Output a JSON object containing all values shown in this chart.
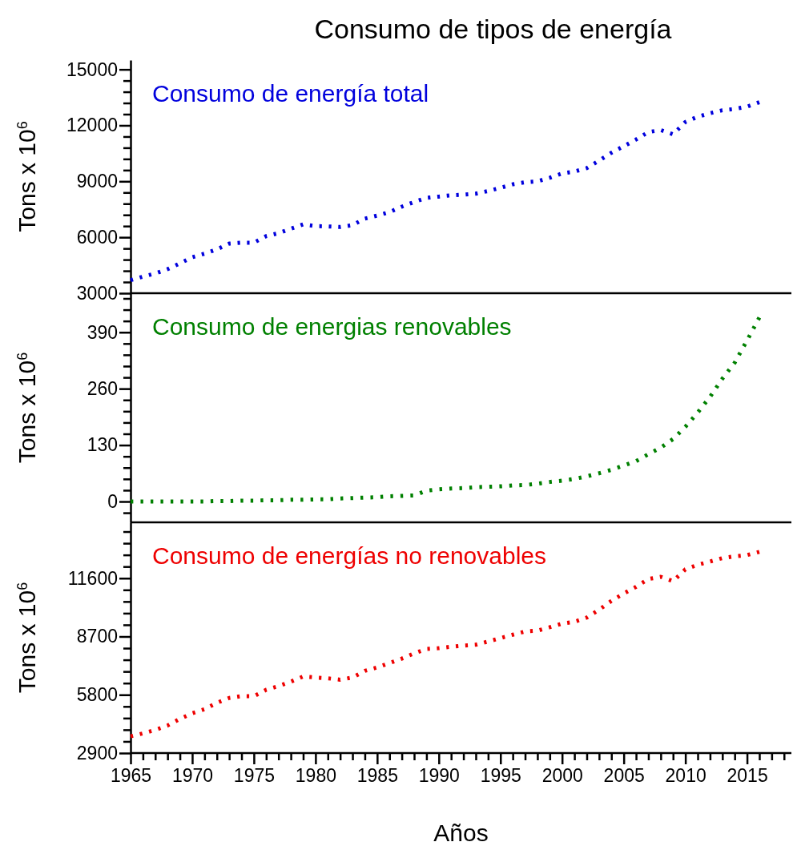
{
  "chart_data": [
    {
      "type": "line",
      "title": "Consumo de tipos de energía",
      "ylabel": "Tons x 10$^{6}$",
      "tick_labels": "y",
      "line_style": "dotted",
      "marker": "none",
      "x": [
        1965,
        1966,
        1967,
        1968,
        1969,
        1970,
        1971,
        1972,
        1973,
        1974,
        1975,
        1976,
        1977,
        1978,
        1979,
        1980,
        1981,
        1982,
        1983,
        1984,
        1985,
        1986,
        1987,
        1988,
        1989,
        1990,
        1991,
        1992,
        1993,
        1994,
        1995,
        1996,
        1997,
        1998,
        1999,
        2000,
        2001,
        2002,
        2003,
        2004,
        2005,
        2006,
        2007,
        2008,
        2009,
        2010,
        2011,
        2012,
        2013,
        2014,
        2015,
        2016
      ],
      "series": [
        {
          "name": "Consumo de energía total",
          "color": "#0000dd",
          "values": [
            3700,
            3890,
            4060,
            4290,
            4600,
            4930,
            5120,
            5350,
            5660,
            5710,
            5710,
            6060,
            6220,
            6460,
            6690,
            6600,
            6580,
            6550,
            6650,
            7000,
            7160,
            7350,
            7640,
            7890,
            8110,
            8180,
            8250,
            8290,
            8340,
            8480,
            8650,
            8840,
            8950,
            9000,
            9190,
            9420,
            9520,
            9710,
            10110,
            10530,
            10880,
            11240,
            11640,
            11750,
            11520,
            12180,
            12460,
            12650,
            12810,
            12880,
            13000,
            13240
          ]
        }
      ],
      "xlim": [
        1965,
        2018.6
      ],
      "ylim": [
        3000,
        15500
      ],
      "yticks": [
        3000,
        {
          "value": 3600,
          "label": null
        },
        {
          "value": 4200,
          "label": null
        },
        {
          "value": 4800,
          "label": null
        },
        {
          "value": 5400,
          "label": null
        },
        6000,
        {
          "value": 6600,
          "label": null
        },
        {
          "value": 7200,
          "label": null
        },
        {
          "value": 7800,
          "label": null
        },
        {
          "value": 8400,
          "label": null
        },
        9000,
        {
          "value": 9600,
          "label": null
        },
        {
          "value": 10200,
          "label": null
        },
        {
          "value": 10800,
          "label": null
        },
        {
          "value": 11400,
          "label": null
        },
        12000,
        {
          "value": 12600,
          "label": null
        },
        {
          "value": 13200,
          "label": null
        },
        {
          "value": 13800,
          "label": null
        },
        {
          "value": 14400,
          "label": null
        },
        15000
      ]
    },
    {
      "type": "line",
      "ylabel": "Tons x 10$^{6}$",
      "tick_labels": "y",
      "line_style": "dotted",
      "marker": "none",
      "x": [
        1965,
        1966,
        1967,
        1968,
        1969,
        1970,
        1971,
        1972,
        1973,
        1974,
        1975,
        1976,
        1977,
        1978,
        1979,
        1980,
        1981,
        1982,
        1983,
        1984,
        1985,
        1986,
        1987,
        1988,
        1989,
        1990,
        1991,
        1992,
        1993,
        1994,
        1995,
        1996,
        1997,
        1998,
        1999,
        2000,
        2001,
        2002,
        2003,
        2004,
        2005,
        2006,
        2007,
        2008,
        2009,
        2010,
        2011,
        2012,
        2013,
        2014,
        2015,
        2016
      ],
      "series": [
        {
          "name": "Consumo de energias renovables",
          "color": "#008000",
          "values": [
            0,
            0,
            0,
            0,
            0,
            0,
            0,
            1,
            1,
            2,
            2,
            3,
            3,
            4,
            4,
            5,
            5,
            7,
            8,
            9,
            10,
            12,
            13,
            14,
            25,
            28,
            30,
            31,
            33,
            34,
            35,
            37,
            38,
            41,
            45,
            48,
            52,
            58,
            65,
            73,
            83,
            93,
            109,
            124,
            144,
            172,
            205,
            241,
            283,
            320,
            371,
            424
          ]
        }
      ],
      "xlim": [
        1965,
        2018.6
      ],
      "ylim": [
        -48,
        480
      ],
      "yticks": [
        {
          "value": -26,
          "label": null
        },
        0,
        {
          "value": 26,
          "label": null
        },
        {
          "value": 52,
          "label": null
        },
        {
          "value": 78,
          "label": null
        },
        {
          "value": 104,
          "label": null
        },
        130,
        {
          "value": 156,
          "label": null
        },
        {
          "value": 182,
          "label": null
        },
        {
          "value": 208,
          "label": null
        },
        {
          "value": 234,
          "label": null
        },
        260,
        {
          "value": 286,
          "label": null
        },
        {
          "value": 312,
          "label": null
        },
        {
          "value": 338,
          "label": null
        },
        {
          "value": 364,
          "label": null
        },
        390,
        {
          "value": 416,
          "label": null
        },
        {
          "value": 442,
          "label": null
        },
        {
          "value": 468,
          "label": null
        }
      ]
    },
    {
      "type": "line",
      "ylabel": "Tons x 10$^{6}$",
      "xlabel": "Años",
      "line_style": "dotted",
      "marker": "none",
      "x": [
        1965,
        1966,
        1967,
        1968,
        1969,
        1970,
        1971,
        1972,
        1973,
        1974,
        1975,
        1976,
        1977,
        1978,
        1979,
        1980,
        1981,
        1982,
        1983,
        1984,
        1985,
        1986,
        1987,
        1988,
        1989,
        1990,
        1991,
        1992,
        1993,
        1994,
        1995,
        1996,
        1997,
        1998,
        1999,
        2000,
        2001,
        2002,
        2003,
        2004,
        2005,
        2006,
        2007,
        2008,
        2009,
        2010,
        2011,
        2012,
        2013,
        2014,
        2015,
        2016
      ],
      "series": [
        {
          "name": "Consumo de energías no renovables",
          "color": "#ee0000",
          "values": [
            3730,
            3880,
            4050,
            4270,
            4600,
            4880,
            5080,
            5400,
            5640,
            5730,
            5730,
            6050,
            6230,
            6450,
            6710,
            6660,
            6620,
            6550,
            6660,
            6990,
            7160,
            7380,
            7600,
            7860,
            8080,
            8120,
            8190,
            8250,
            8290,
            8450,
            8620,
            8790,
            8950,
            8990,
            9160,
            9340,
            9430,
            9640,
            10030,
            10470,
            10840,
            11170,
            11560,
            11670,
            11450,
            12040,
            12270,
            12430,
            12600,
            12690,
            12750,
            12910
          ]
        }
      ],
      "xlim": [
        1965,
        2018.6
      ],
      "xticks": [
        {
          "value": 1965,
          "label": "1965"
        },
        {
          "value": 1966,
          "label": null
        },
        {
          "value": 1967,
          "label": null
        },
        {
          "value": 1968,
          "label": null
        },
        {
          "value": 1969,
          "label": null
        },
        {
          "value": 1970,
          "label": "1970"
        },
        {
          "value": 1971,
          "label": null
        },
        {
          "value": 1972,
          "label": null
        },
        {
          "value": 1973,
          "label": null
        },
        {
          "value": 1974,
          "label": null
        },
        {
          "value": 1975,
          "label": "1975"
        },
        {
          "value": 1976,
          "label": null
        },
        {
          "value": 1977,
          "label": null
        },
        {
          "value": 1978,
          "label": null
        },
        {
          "value": 1979,
          "label": null
        },
        {
          "value": 1980,
          "label": "1980"
        },
        {
          "value": 1981,
          "label": null
        },
        {
          "value": 1982,
          "label": null
        },
        {
          "value": 1983,
          "label": null
        },
        {
          "value": 1984,
          "label": null
        },
        {
          "value": 1985,
          "label": "1985"
        },
        {
          "value": 1986,
          "label": null
        },
        {
          "value": 1987,
          "label": null
        },
        {
          "value": 1988,
          "label": null
        },
        {
          "value": 1989,
          "label": null
        },
        {
          "value": 1990,
          "label": "1990"
        },
        {
          "value": 1991,
          "label": null
        },
        {
          "value": 1992,
          "label": null
        },
        {
          "value": 1993,
          "label": null
        },
        {
          "value": 1994,
          "label": null
        },
        {
          "value": 1995,
          "label": "1995"
        },
        {
          "value": 1996,
          "label": null
        },
        {
          "value": 1997,
          "label": null
        },
        {
          "value": 1998,
          "label": null
        },
        {
          "value": 1999,
          "label": null
        },
        {
          "value": 2000,
          "label": "2000"
        },
        {
          "value": 2001,
          "label": null
        },
        {
          "value": 2002,
          "label": null
        },
        {
          "value": 2003,
          "label": null
        },
        {
          "value": 2004,
          "label": null
        },
        {
          "value": 2005,
          "label": "2005"
        },
        {
          "value": 2006,
          "label": null
        },
        {
          "value": 2007,
          "label": null
        },
        {
          "value": 2008,
          "label": null
        },
        {
          "value": 2009,
          "label": null
        },
        {
          "value": 2010,
          "label": "2010"
        },
        {
          "value": 2011,
          "label": null
        },
        {
          "value": 2012,
          "label": null
        },
        {
          "value": 2013,
          "label": null
        },
        {
          "value": 2014,
          "label": null
        },
        {
          "value": 2015,
          "label": "2015"
        },
        {
          "value": 2016,
          "label": null
        },
        {
          "value": 2017,
          "label": null
        },
        {
          "value": 2018,
          "label": null
        }
      ],
      "ylim": [
        2900,
        14380
      ],
      "yticks": [
        2900,
        {
          "value": 3480,
          "label": null
        },
        {
          "value": 4060,
          "label": null
        },
        {
          "value": 4640,
          "label": null
        },
        {
          "value": 5220,
          "label": null
        },
        5800,
        {
          "value": 6380,
          "label": null
        },
        {
          "value": 6960,
          "label": null
        },
        {
          "value": 7540,
          "label": null
        },
        {
          "value": 8120,
          "label": null
        },
        8700,
        {
          "value": 9280,
          "label": null
        },
        {
          "value": 9860,
          "label": null
        },
        {
          "value": 10440,
          "label": null
        },
        {
          "value": 11020,
          "label": null
        },
        11600,
        {
          "value": 12180,
          "label": null
        },
        {
          "value": 12760,
          "label": null
        },
        {
          "value": 13340,
          "label": null
        },
        {
          "value": 13920,
          "label": null
        }
      ]
    }
  ]
}
